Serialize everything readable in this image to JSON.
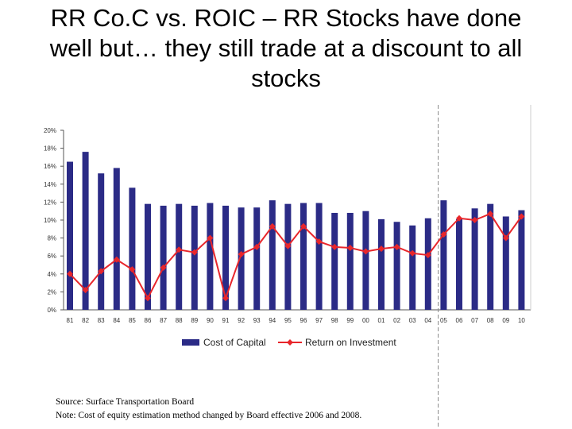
{
  "slide": {
    "title_line1": "RR Co.C vs. ROIC – RR Stocks have done",
    "title_line2": "well but… they still trade at a discount to all",
    "title_line3": "stocks"
  },
  "notes": {
    "source": "Source:  Surface Transportation Board",
    "note": "Note:  Cost of equity estimation method changed by Board effective 2006 and 2008."
  },
  "colors": {
    "bar": "#2b2b86",
    "line": "#e8262b",
    "axis": "#555555",
    "divider": "#888888"
  },
  "chart_data": {
    "type": "bar",
    "title": "",
    "xlabel": "",
    "ylabel": "",
    "ylim": [
      0,
      20
    ],
    "yticks": [
      "0%",
      "2%",
      "4%",
      "6%",
      "8%",
      "10%",
      "12%",
      "14%",
      "16%",
      "18%",
      "20%"
    ],
    "categories": [
      "81",
      "82",
      "83",
      "84",
      "85",
      "86",
      "87",
      "88",
      "89",
      "90",
      "91",
      "92",
      "93",
      "94",
      "95",
      "96",
      "97",
      "98",
      "99",
      "00",
      "01",
      "02",
      "03",
      "04",
      "05",
      "06",
      "07",
      "08",
      "09",
      "10"
    ],
    "series": [
      {
        "name": "Cost of Capital",
        "type": "bar",
        "values": [
          16.5,
          17.6,
          15.2,
          15.8,
          13.6,
          11.8,
          11.6,
          11.8,
          11.6,
          11.9,
          11.6,
          11.4,
          11.4,
          12.2,
          11.8,
          11.9,
          11.9,
          10.8,
          10.8,
          11.0,
          10.1,
          9.8,
          9.4,
          10.2,
          12.2,
          10.1,
          11.3,
          11.8,
          10.4,
          11.1
        ]
      },
      {
        "name": "Return on Investment",
        "type": "line",
        "values": [
          4.0,
          2.2,
          4.3,
          5.6,
          4.5,
          1.3,
          4.7,
          6.7,
          6.4,
          8.0,
          1.3,
          6.2,
          7.0,
          9.3,
          7.1,
          9.3,
          7.6,
          7.0,
          6.9,
          6.5,
          6.8,
          7.0,
          6.3,
          6.1,
          8.4,
          10.2,
          10.0,
          10.7,
          8.0,
          10.4
        ]
      }
    ],
    "legend": [
      "Cost of Capital",
      "Return on Investment"
    ],
    "divider_after_category": "04"
  }
}
